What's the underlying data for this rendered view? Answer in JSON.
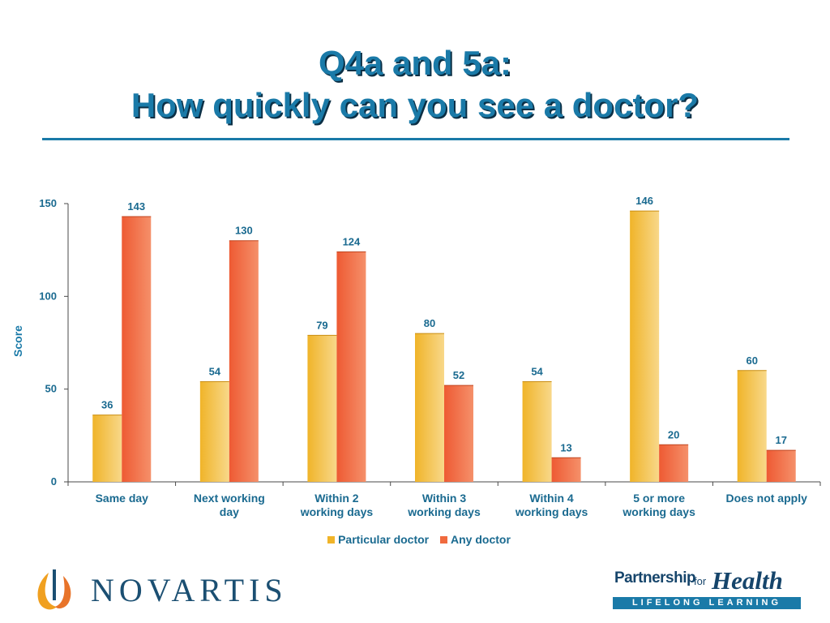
{
  "title": {
    "line1": "Q4a and 5a:",
    "line2": "How quickly can you see a doctor?"
  },
  "chart_data": {
    "type": "bar",
    "categories": [
      [
        "Same day"
      ],
      [
        "Next working",
        "day"
      ],
      [
        "Within 2",
        "working days"
      ],
      [
        "Within 3",
        "working days"
      ],
      [
        "Within 4",
        "working days"
      ],
      [
        "5 or more",
        "working days"
      ],
      [
        "Does not apply"
      ]
    ],
    "series": [
      {
        "name": "Particular doctor",
        "color": "#f0b429",
        "values": [
          36,
          54,
          79,
          80,
          54,
          146,
          60
        ]
      },
      {
        "name": "Any doctor",
        "color": "#f06a3e",
        "values": [
          143,
          130,
          124,
          52,
          13,
          20,
          17
        ]
      }
    ],
    "ylabel": "Score",
    "ylim": [
      0,
      150
    ],
    "yticks": [
      0,
      50,
      100,
      150
    ],
    "legend": "bottom",
    "grid": false
  },
  "logos": {
    "novartis": "NOVARTIS",
    "pfh_partnership": "Partnership",
    "pfh_for": "for",
    "pfh_health": "Health",
    "pfh_tagline": "LIFELONG LEARNING"
  }
}
